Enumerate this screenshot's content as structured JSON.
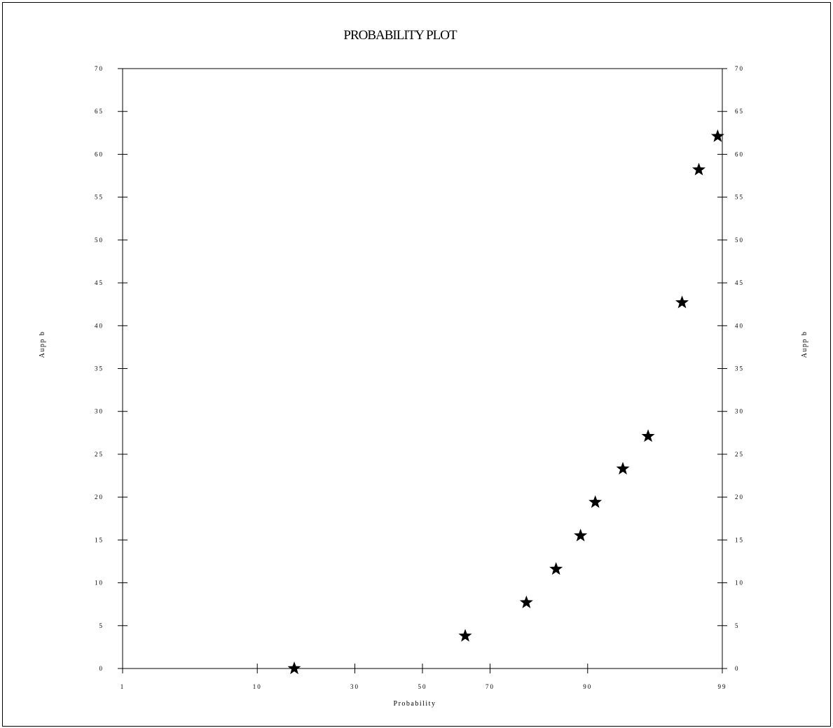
{
  "chart_data": {
    "type": "scatter",
    "title": "PROBABILITY PLOT",
    "xlabel": "Probability",
    "ylabel": "Aupp b",
    "ylabel_right": "Aupp b",
    "x_scale": "normal-probability",
    "xlim": [
      1,
      99
    ],
    "ylim": [
      0,
      70
    ],
    "x_ticks": [
      1,
      10,
      30,
      50,
      70,
      90,
      99
    ],
    "y_ticks": [
      0,
      5,
      10,
      15,
      20,
      25,
      30,
      35,
      40,
      45,
      50,
      55,
      60,
      65,
      70
    ],
    "marker": "star",
    "grid": false,
    "series": [
      {
        "x": [
          16,
          63,
          79,
          85,
          89,
          91,
          94,
          96,
          97.8,
          98.4,
          98.9
        ],
        "y": [
          0,
          3.8,
          7.7,
          11.6,
          15.5,
          19.4,
          23.3,
          27.1,
          42.7,
          58.2,
          62.1
        ]
      }
    ]
  }
}
